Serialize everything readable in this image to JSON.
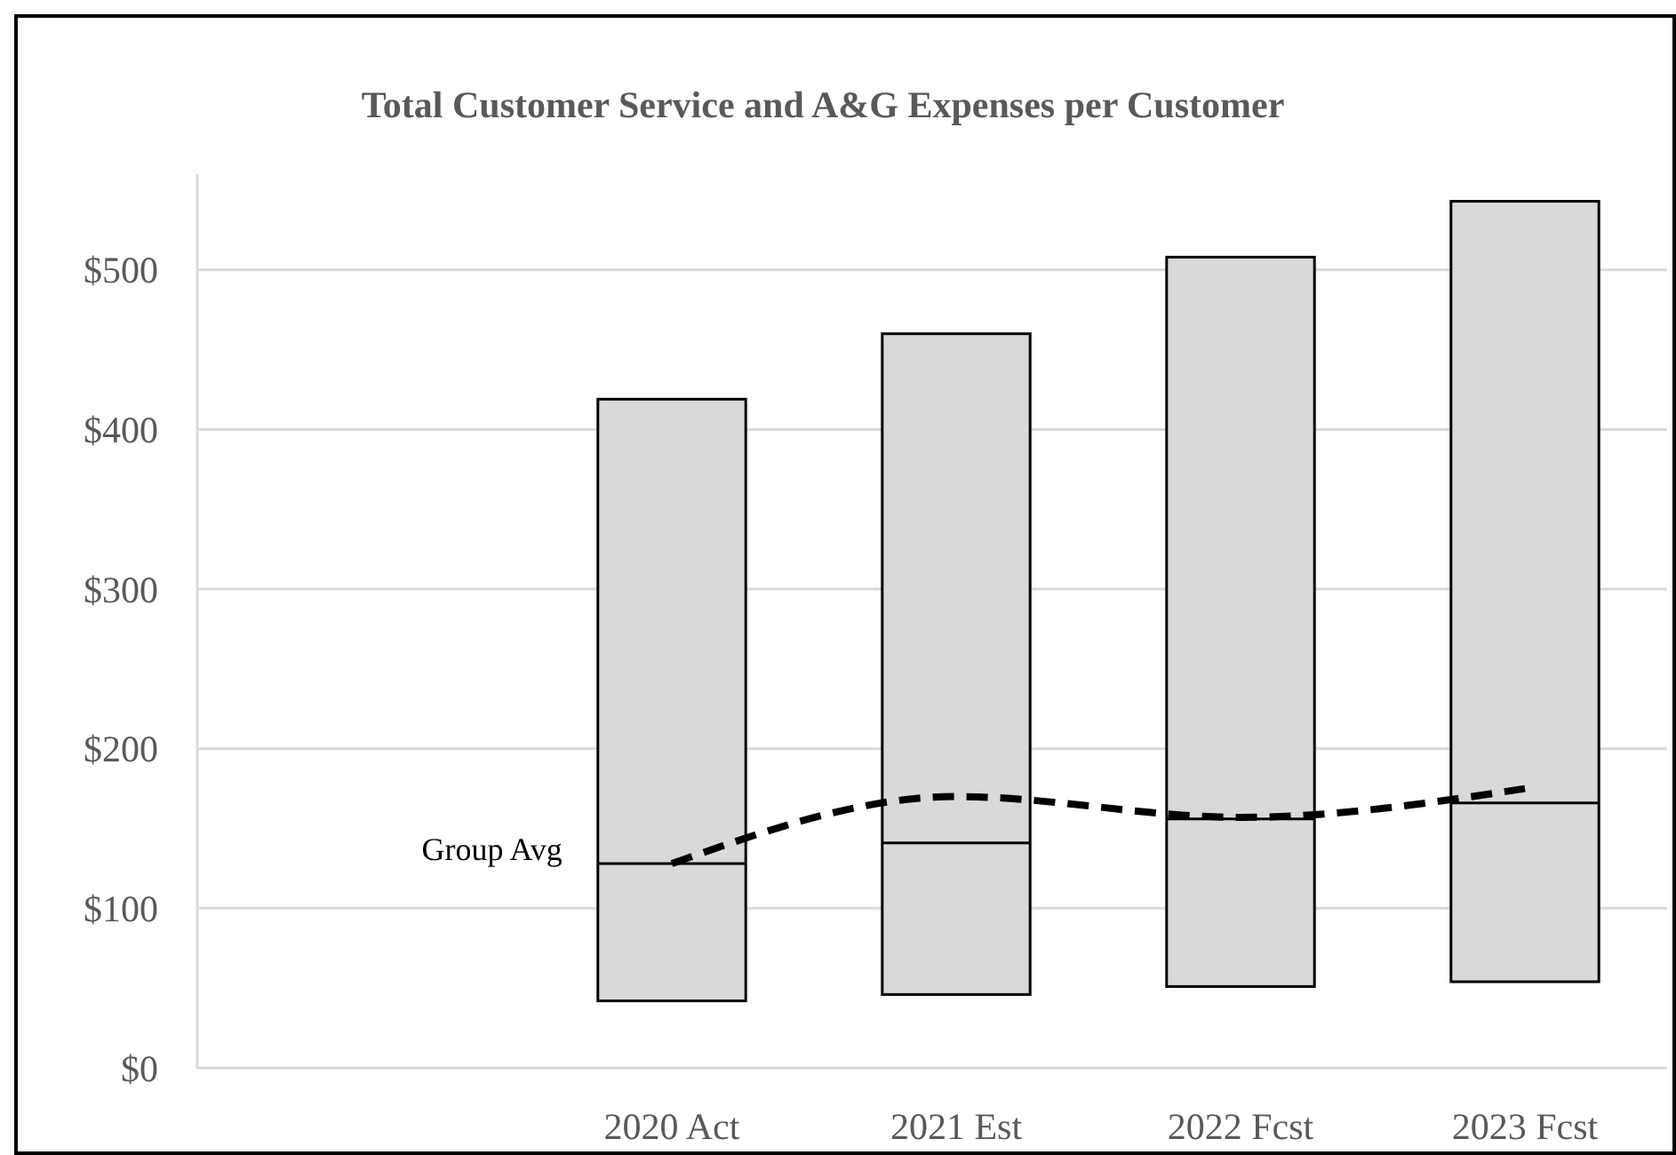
{
  "chart_data": {
    "type": "box",
    "title": "Total Customer Service and A&G Expenses per Customer",
    "categories": [
      "2020 Act",
      "2021 Est",
      "2022 Fcst",
      "2023 Fcst"
    ],
    "boxes": [
      {
        "low": 42,
        "q1": 42,
        "median": 128,
        "q3": 419,
        "high": 419
      },
      {
        "low": 46,
        "q1": 46,
        "median": 141,
        "q3": 460,
        "high": 460
      },
      {
        "low": 51,
        "q1": 51,
        "median": 156,
        "q3": 508,
        "high": 508
      },
      {
        "low": 54,
        "q1": 54,
        "median": 166,
        "q3": 543,
        "high": 543
      }
    ],
    "color": "#d9d9d9",
    "series": [
      {
        "type": "line",
        "color": "#000000",
        "line_style": "dashed",
        "values": [
          128,
          170,
          157,
          175
        ]
      }
    ],
    "ylim": [
      0,
      560
    ],
    "yticks": [
      {
        "value": 0,
        "label": "$0"
      },
      {
        "value": 100,
        "label": "$100"
      },
      {
        "value": 200,
        "label": "$200"
      },
      {
        "value": 300,
        "label": "$300"
      },
      {
        "value": 400,
        "label": "$400"
      },
      {
        "value": 500,
        "label": "$500"
      }
    ],
    "grid": "y",
    "annotations": [
      "Group Avg"
    ]
  }
}
